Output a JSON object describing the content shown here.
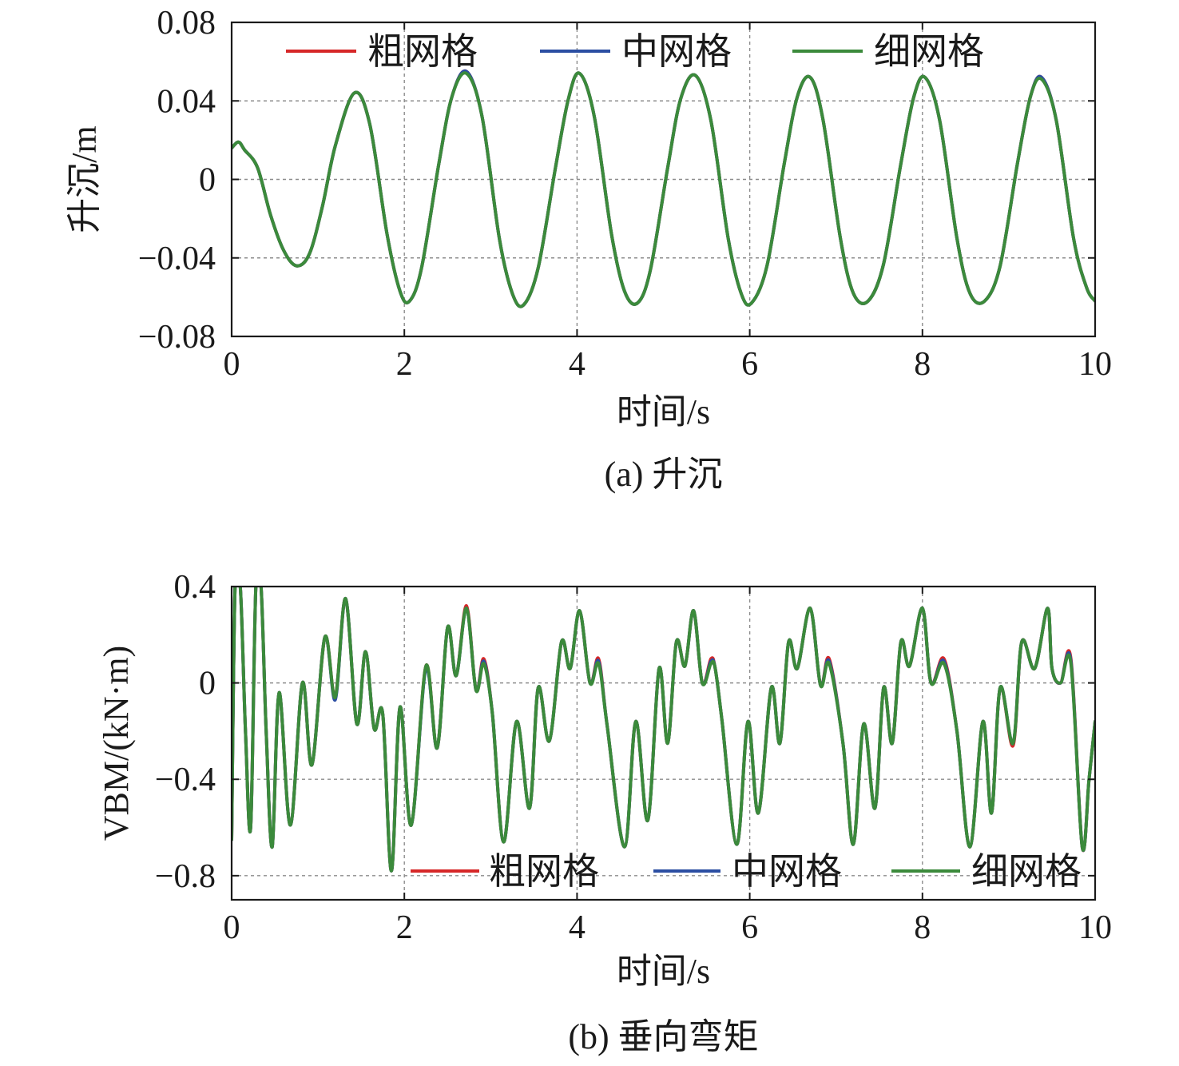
{
  "chart_data": [
    {
      "type": "line",
      "title": "",
      "caption": "(a) 升沉",
      "xlabel": "时间/s",
      "ylabel": "升沉/m",
      "xlim": [
        0,
        10
      ],
      "ylim": [
        -0.08,
        0.08
      ],
      "xticks": [
        0,
        2,
        4,
        6,
        8,
        10
      ],
      "xtick_labels": [
        "0",
        "2",
        "4",
        "6",
        "8",
        "10"
      ],
      "yticks": [
        -0.08,
        -0.04,
        0,
        0.04,
        0.08
      ],
      "ytick_labels": [
        "−0.08",
        "−0.04",
        "0",
        "0.04",
        "0.08"
      ],
      "grid": true,
      "legend_position": "top",
      "series": [
        {
          "name": "粗网格",
          "color": "#d62728",
          "x": [
            0,
            0.08,
            0.15,
            0.3,
            0.45,
            0.6,
            0.75,
            0.9,
            1.05,
            1.2,
            1.42,
            1.6,
            1.8,
            1.95,
            2.06,
            2.2,
            2.4,
            2.55,
            2.72,
            2.9,
            3.1,
            3.25,
            3.38,
            3.55,
            3.75,
            3.9,
            4.03,
            4.2,
            4.4,
            4.55,
            4.7,
            4.85,
            5.05,
            5.2,
            5.37,
            5.55,
            5.75,
            5.9,
            6.02,
            6.2,
            6.4,
            6.55,
            6.7,
            6.85,
            7.05,
            7.2,
            7.37,
            7.55,
            7.75,
            7.9,
            8.03,
            8.2,
            8.4,
            8.55,
            8.72,
            8.9,
            9.1,
            9.25,
            9.38,
            9.55,
            9.75,
            9.9,
            10
          ],
          "y": [
            0.016,
            0.019,
            0.015,
            0.006,
            -0.018,
            -0.036,
            -0.044,
            -0.038,
            -0.014,
            0.017,
            0.044,
            0.028,
            -0.028,
            -0.057,
            -0.062,
            -0.045,
            0.008,
            0.042,
            0.055,
            0.032,
            -0.03,
            -0.058,
            -0.064,
            -0.045,
            0.006,
            0.041,
            0.054,
            0.032,
            -0.028,
            -0.057,
            -0.063,
            -0.046,
            0.006,
            0.041,
            0.053,
            0.03,
            -0.03,
            -0.058,
            -0.063,
            -0.044,
            0.008,
            0.042,
            0.052,
            0.03,
            -0.03,
            -0.058,
            -0.062,
            -0.043,
            0.008,
            0.042,
            0.052,
            0.03,
            -0.03,
            -0.058,
            -0.062,
            -0.044,
            0.008,
            0.042,
            0.052,
            0.03,
            -0.03,
            -0.055,
            -0.062
          ]
        },
        {
          "name": "中网格",
          "color": "#2b4ea2",
          "x": [
            0,
            0.08,
            0.15,
            0.3,
            0.45,
            0.6,
            0.75,
            0.9,
            1.05,
            1.2,
            1.42,
            1.6,
            1.8,
            1.95,
            2.06,
            2.2,
            2.4,
            2.55,
            2.72,
            2.9,
            3.1,
            3.25,
            3.38,
            3.55,
            3.75,
            3.9,
            4.03,
            4.2,
            4.4,
            4.55,
            4.7,
            4.85,
            5.05,
            5.2,
            5.37,
            5.55,
            5.75,
            5.9,
            6.02,
            6.2,
            6.4,
            6.55,
            6.7,
            6.85,
            7.05,
            7.2,
            7.37,
            7.55,
            7.75,
            7.9,
            8.03,
            8.2,
            8.4,
            8.55,
            8.72,
            8.9,
            9.1,
            9.25,
            9.38,
            9.55,
            9.75,
            9.9,
            10
          ],
          "y": [
            0.016,
            0.019,
            0.015,
            0.006,
            -0.018,
            -0.036,
            -0.044,
            -0.038,
            -0.014,
            0.017,
            0.044,
            0.028,
            -0.028,
            -0.057,
            -0.062,
            -0.045,
            0.008,
            0.042,
            0.055,
            0.032,
            -0.03,
            -0.058,
            -0.064,
            -0.045,
            0.006,
            0.041,
            0.054,
            0.032,
            -0.028,
            -0.057,
            -0.063,
            -0.046,
            0.006,
            0.041,
            0.053,
            0.03,
            -0.03,
            -0.058,
            -0.063,
            -0.044,
            0.008,
            0.042,
            0.052,
            0.03,
            -0.03,
            -0.058,
            -0.062,
            -0.043,
            0.008,
            0.042,
            0.052,
            0.03,
            -0.03,
            -0.058,
            -0.062,
            -0.044,
            0.008,
            0.042,
            0.052,
            0.03,
            -0.03,
            -0.055,
            -0.062
          ]
        },
        {
          "name": "细网格",
          "color": "#3b8a3b",
          "x": [
            0,
            0.08,
            0.15,
            0.3,
            0.45,
            0.6,
            0.75,
            0.9,
            1.05,
            1.2,
            1.42,
            1.6,
            1.8,
            1.95,
            2.06,
            2.2,
            2.4,
            2.55,
            2.72,
            2.9,
            3.1,
            3.25,
            3.38,
            3.55,
            3.75,
            3.9,
            4.03,
            4.2,
            4.4,
            4.55,
            4.7,
            4.85,
            5.05,
            5.2,
            5.37,
            5.55,
            5.75,
            5.9,
            6.02,
            6.2,
            6.4,
            6.55,
            6.7,
            6.85,
            7.05,
            7.2,
            7.37,
            7.55,
            7.75,
            7.9,
            8.03,
            8.2,
            8.4,
            8.55,
            8.72,
            8.9,
            9.1,
            9.25,
            9.38,
            9.55,
            9.75,
            9.9,
            10
          ],
          "y": [
            0.016,
            0.019,
            0.015,
            0.006,
            -0.018,
            -0.036,
            -0.044,
            -0.038,
            -0.014,
            0.017,
            0.044,
            0.028,
            -0.028,
            -0.057,
            -0.062,
            -0.045,
            0.008,
            0.042,
            0.054,
            0.032,
            -0.03,
            -0.058,
            -0.064,
            -0.045,
            0.006,
            0.041,
            0.054,
            0.032,
            -0.028,
            -0.057,
            -0.063,
            -0.046,
            0.006,
            0.041,
            0.053,
            0.03,
            -0.03,
            -0.058,
            -0.063,
            -0.044,
            0.008,
            0.042,
            0.052,
            0.03,
            -0.03,
            -0.058,
            -0.062,
            -0.043,
            0.008,
            0.042,
            0.052,
            0.03,
            -0.03,
            -0.058,
            -0.062,
            -0.044,
            0.008,
            0.042,
            0.051,
            0.03,
            -0.03,
            -0.055,
            -0.062
          ]
        }
      ]
    },
    {
      "type": "line",
      "title": "",
      "caption": "(b) 垂向弯矩",
      "xlabel": "时间/s",
      "ylabel": "VBM/(kN·m)",
      "xlim": [
        0,
        10
      ],
      "ylim": [
        -0.9,
        0.4
      ],
      "xticks": [
        0,
        2,
        4,
        6,
        8,
        10
      ],
      "xtick_labels": [
        "0",
        "2",
        "4",
        "6",
        "8",
        "10"
      ],
      "yticks": [
        -0.8,
        -0.4,
        0,
        0.4
      ],
      "ytick_labels": [
        "−0.8",
        "−0.4",
        "0",
        "0.4"
      ],
      "grid": true,
      "legend_position": "bottom-right",
      "series": [
        {
          "name": "粗网格",
          "color": "#d62728",
          "x": [
            0,
            0.04,
            0.1,
            0.16,
            0.22,
            0.28,
            0.34,
            0.4,
            0.47,
            0.55,
            0.68,
            0.82,
            0.93,
            1.08,
            1.2,
            1.32,
            1.45,
            1.55,
            1.65,
            1.75,
            1.85,
            1.95,
            2.08,
            2.25,
            2.38,
            2.5,
            2.6,
            2.72,
            2.83,
            2.92,
            3.02,
            3.15,
            3.3,
            3.45,
            3.55,
            3.68,
            3.82,
            3.92,
            4.03,
            4.15,
            4.25,
            4.35,
            4.55,
            4.68,
            4.82,
            4.95,
            5.05,
            5.15,
            5.25,
            5.35,
            5.45,
            5.55,
            5.6,
            5.68,
            5.85,
            5.98,
            6.1,
            6.25,
            6.35,
            6.45,
            6.55,
            6.7,
            6.82,
            6.92,
            7.08,
            7.2,
            7.32,
            7.45,
            7.55,
            7.65,
            7.75,
            7.85,
            8.0,
            8.1,
            8.25,
            8.4,
            8.55,
            8.7,
            8.8,
            8.9,
            9.05,
            9.15,
            9.3,
            9.45,
            9.5,
            9.6,
            9.72,
            9.85,
            9.93,
            10
          ],
          "y": [
            -0.65,
            0.4,
            0.4,
            -0.2,
            -0.6,
            0.4,
            0.4,
            -0.2,
            -0.68,
            -0.04,
            -0.59,
            0.0,
            -0.34,
            0.19,
            -0.06,
            0.35,
            -0.17,
            0.13,
            -0.19,
            -0.13,
            -0.78,
            -0.1,
            -0.59,
            0.07,
            -0.27,
            0.23,
            0.03,
            0.32,
            -0.03,
            0.1,
            -0.13,
            -0.66,
            -0.16,
            -0.52,
            -0.02,
            -0.24,
            0.17,
            0.06,
            0.3,
            0.0,
            0.1,
            -0.18,
            -0.68,
            -0.16,
            -0.57,
            0.06,
            -0.25,
            0.17,
            0.07,
            0.3,
            0.0,
            0.1,
            0.06,
            -0.16,
            -0.67,
            -0.16,
            -0.54,
            -0.02,
            -0.25,
            0.17,
            0.06,
            0.31,
            -0.01,
            0.1,
            -0.25,
            -0.67,
            -0.17,
            -0.52,
            -0.02,
            -0.25,
            0.17,
            0.07,
            0.31,
            0.0,
            0.1,
            -0.2,
            -0.68,
            -0.16,
            -0.54,
            -0.02,
            -0.26,
            0.17,
            0.06,
            0.31,
            0.06,
            0.0,
            0.1,
            -0.68,
            -0.4,
            -0.16
          ]
        },
        {
          "name": "中网格",
          "color": "#2b4ea2",
          "x": [
            0,
            0.04,
            0.1,
            0.16,
            0.22,
            0.28,
            0.34,
            0.4,
            0.47,
            0.55,
            0.68,
            0.82,
            0.93,
            1.08,
            1.2,
            1.32,
            1.45,
            1.55,
            1.65,
            1.75,
            1.85,
            1.95,
            2.08,
            2.25,
            2.38,
            2.5,
            2.6,
            2.72,
            2.83,
            2.92,
            3.02,
            3.15,
            3.3,
            3.45,
            3.55,
            3.68,
            3.82,
            3.92,
            4.03,
            4.15,
            4.25,
            4.35,
            4.55,
            4.68,
            4.82,
            4.95,
            5.05,
            5.15,
            5.25,
            5.35,
            5.45,
            5.55,
            5.6,
            5.68,
            5.85,
            5.98,
            6.1,
            6.25,
            6.35,
            6.45,
            6.55,
            6.7,
            6.82,
            6.92,
            7.08,
            7.2,
            7.32,
            7.45,
            7.55,
            7.65,
            7.75,
            7.85,
            8.0,
            8.1,
            8.25,
            8.4,
            8.55,
            8.7,
            8.8,
            8.9,
            9.05,
            9.15,
            9.3,
            9.45,
            9.5,
            9.6,
            9.72,
            9.85,
            9.93,
            10
          ],
          "y": [
            -0.65,
            0.4,
            0.4,
            -0.2,
            -0.6,
            0.4,
            0.4,
            -0.2,
            -0.68,
            -0.04,
            -0.59,
            0.0,
            -0.34,
            0.19,
            -0.07,
            0.35,
            -0.17,
            0.13,
            -0.19,
            -0.13,
            -0.78,
            -0.1,
            -0.59,
            0.06,
            -0.27,
            0.23,
            0.03,
            0.31,
            -0.03,
            0.09,
            -0.13,
            -0.66,
            -0.16,
            -0.52,
            -0.02,
            -0.24,
            0.17,
            0.06,
            0.3,
            0.0,
            0.09,
            -0.18,
            -0.68,
            -0.16,
            -0.57,
            0.06,
            -0.25,
            0.17,
            0.07,
            0.3,
            0.0,
            0.09,
            0.06,
            -0.16,
            -0.67,
            -0.16,
            -0.54,
            -0.02,
            -0.25,
            0.17,
            0.06,
            0.31,
            -0.01,
            0.09,
            -0.25,
            -0.67,
            -0.17,
            -0.52,
            -0.02,
            -0.25,
            0.17,
            0.07,
            0.31,
            0.0,
            0.09,
            -0.2,
            -0.68,
            -0.16,
            -0.54,
            -0.02,
            -0.25,
            0.17,
            0.06,
            0.31,
            0.06,
            0.0,
            0.09,
            -0.68,
            -0.4,
            -0.16
          ]
        },
        {
          "name": "细网格",
          "color": "#3b8a3b",
          "x": [
            0,
            0.04,
            0.1,
            0.16,
            0.22,
            0.28,
            0.34,
            0.4,
            0.47,
            0.55,
            0.68,
            0.82,
            0.93,
            1.08,
            1.2,
            1.32,
            1.45,
            1.55,
            1.65,
            1.75,
            1.85,
            1.95,
            2.08,
            2.25,
            2.38,
            2.5,
            2.6,
            2.72,
            2.83,
            2.92,
            3.02,
            3.15,
            3.3,
            3.45,
            3.55,
            3.68,
            3.82,
            3.92,
            4.03,
            4.15,
            4.25,
            4.35,
            4.55,
            4.68,
            4.82,
            4.95,
            5.05,
            5.15,
            5.25,
            5.35,
            5.45,
            5.55,
            5.6,
            5.68,
            5.85,
            5.98,
            6.1,
            6.25,
            6.35,
            6.45,
            6.55,
            6.7,
            6.82,
            6.92,
            7.08,
            7.2,
            7.32,
            7.45,
            7.55,
            7.65,
            7.75,
            7.85,
            8.0,
            8.1,
            8.25,
            8.4,
            8.55,
            8.7,
            8.8,
            8.9,
            9.05,
            9.15,
            9.3,
            9.45,
            9.5,
            9.6,
            9.72,
            9.85,
            9.93,
            10
          ],
          "y": [
            -0.65,
            0.4,
            0.4,
            -0.2,
            -0.6,
            0.4,
            0.4,
            -0.2,
            -0.68,
            -0.04,
            -0.59,
            0.0,
            -0.34,
            0.19,
            -0.06,
            0.35,
            -0.17,
            0.13,
            -0.19,
            -0.13,
            -0.78,
            -0.1,
            -0.59,
            0.07,
            -0.27,
            0.23,
            0.03,
            0.31,
            -0.03,
            0.08,
            -0.13,
            -0.66,
            -0.16,
            -0.52,
            -0.02,
            -0.24,
            0.17,
            0.06,
            0.3,
            0.0,
            0.08,
            -0.18,
            -0.68,
            -0.16,
            -0.57,
            0.06,
            -0.25,
            0.17,
            0.07,
            0.3,
            0.0,
            0.08,
            0.06,
            -0.16,
            -0.67,
            -0.16,
            -0.54,
            -0.02,
            -0.25,
            0.17,
            0.06,
            0.31,
            -0.01,
            0.08,
            -0.25,
            -0.67,
            -0.17,
            -0.52,
            -0.02,
            -0.25,
            0.17,
            0.07,
            0.31,
            0.0,
            0.08,
            -0.2,
            -0.68,
            -0.16,
            -0.54,
            -0.02,
            -0.25,
            0.17,
            0.06,
            0.31,
            0.06,
            0.0,
            0.08,
            -0.68,
            -0.4,
            -0.16
          ]
        }
      ]
    }
  ]
}
